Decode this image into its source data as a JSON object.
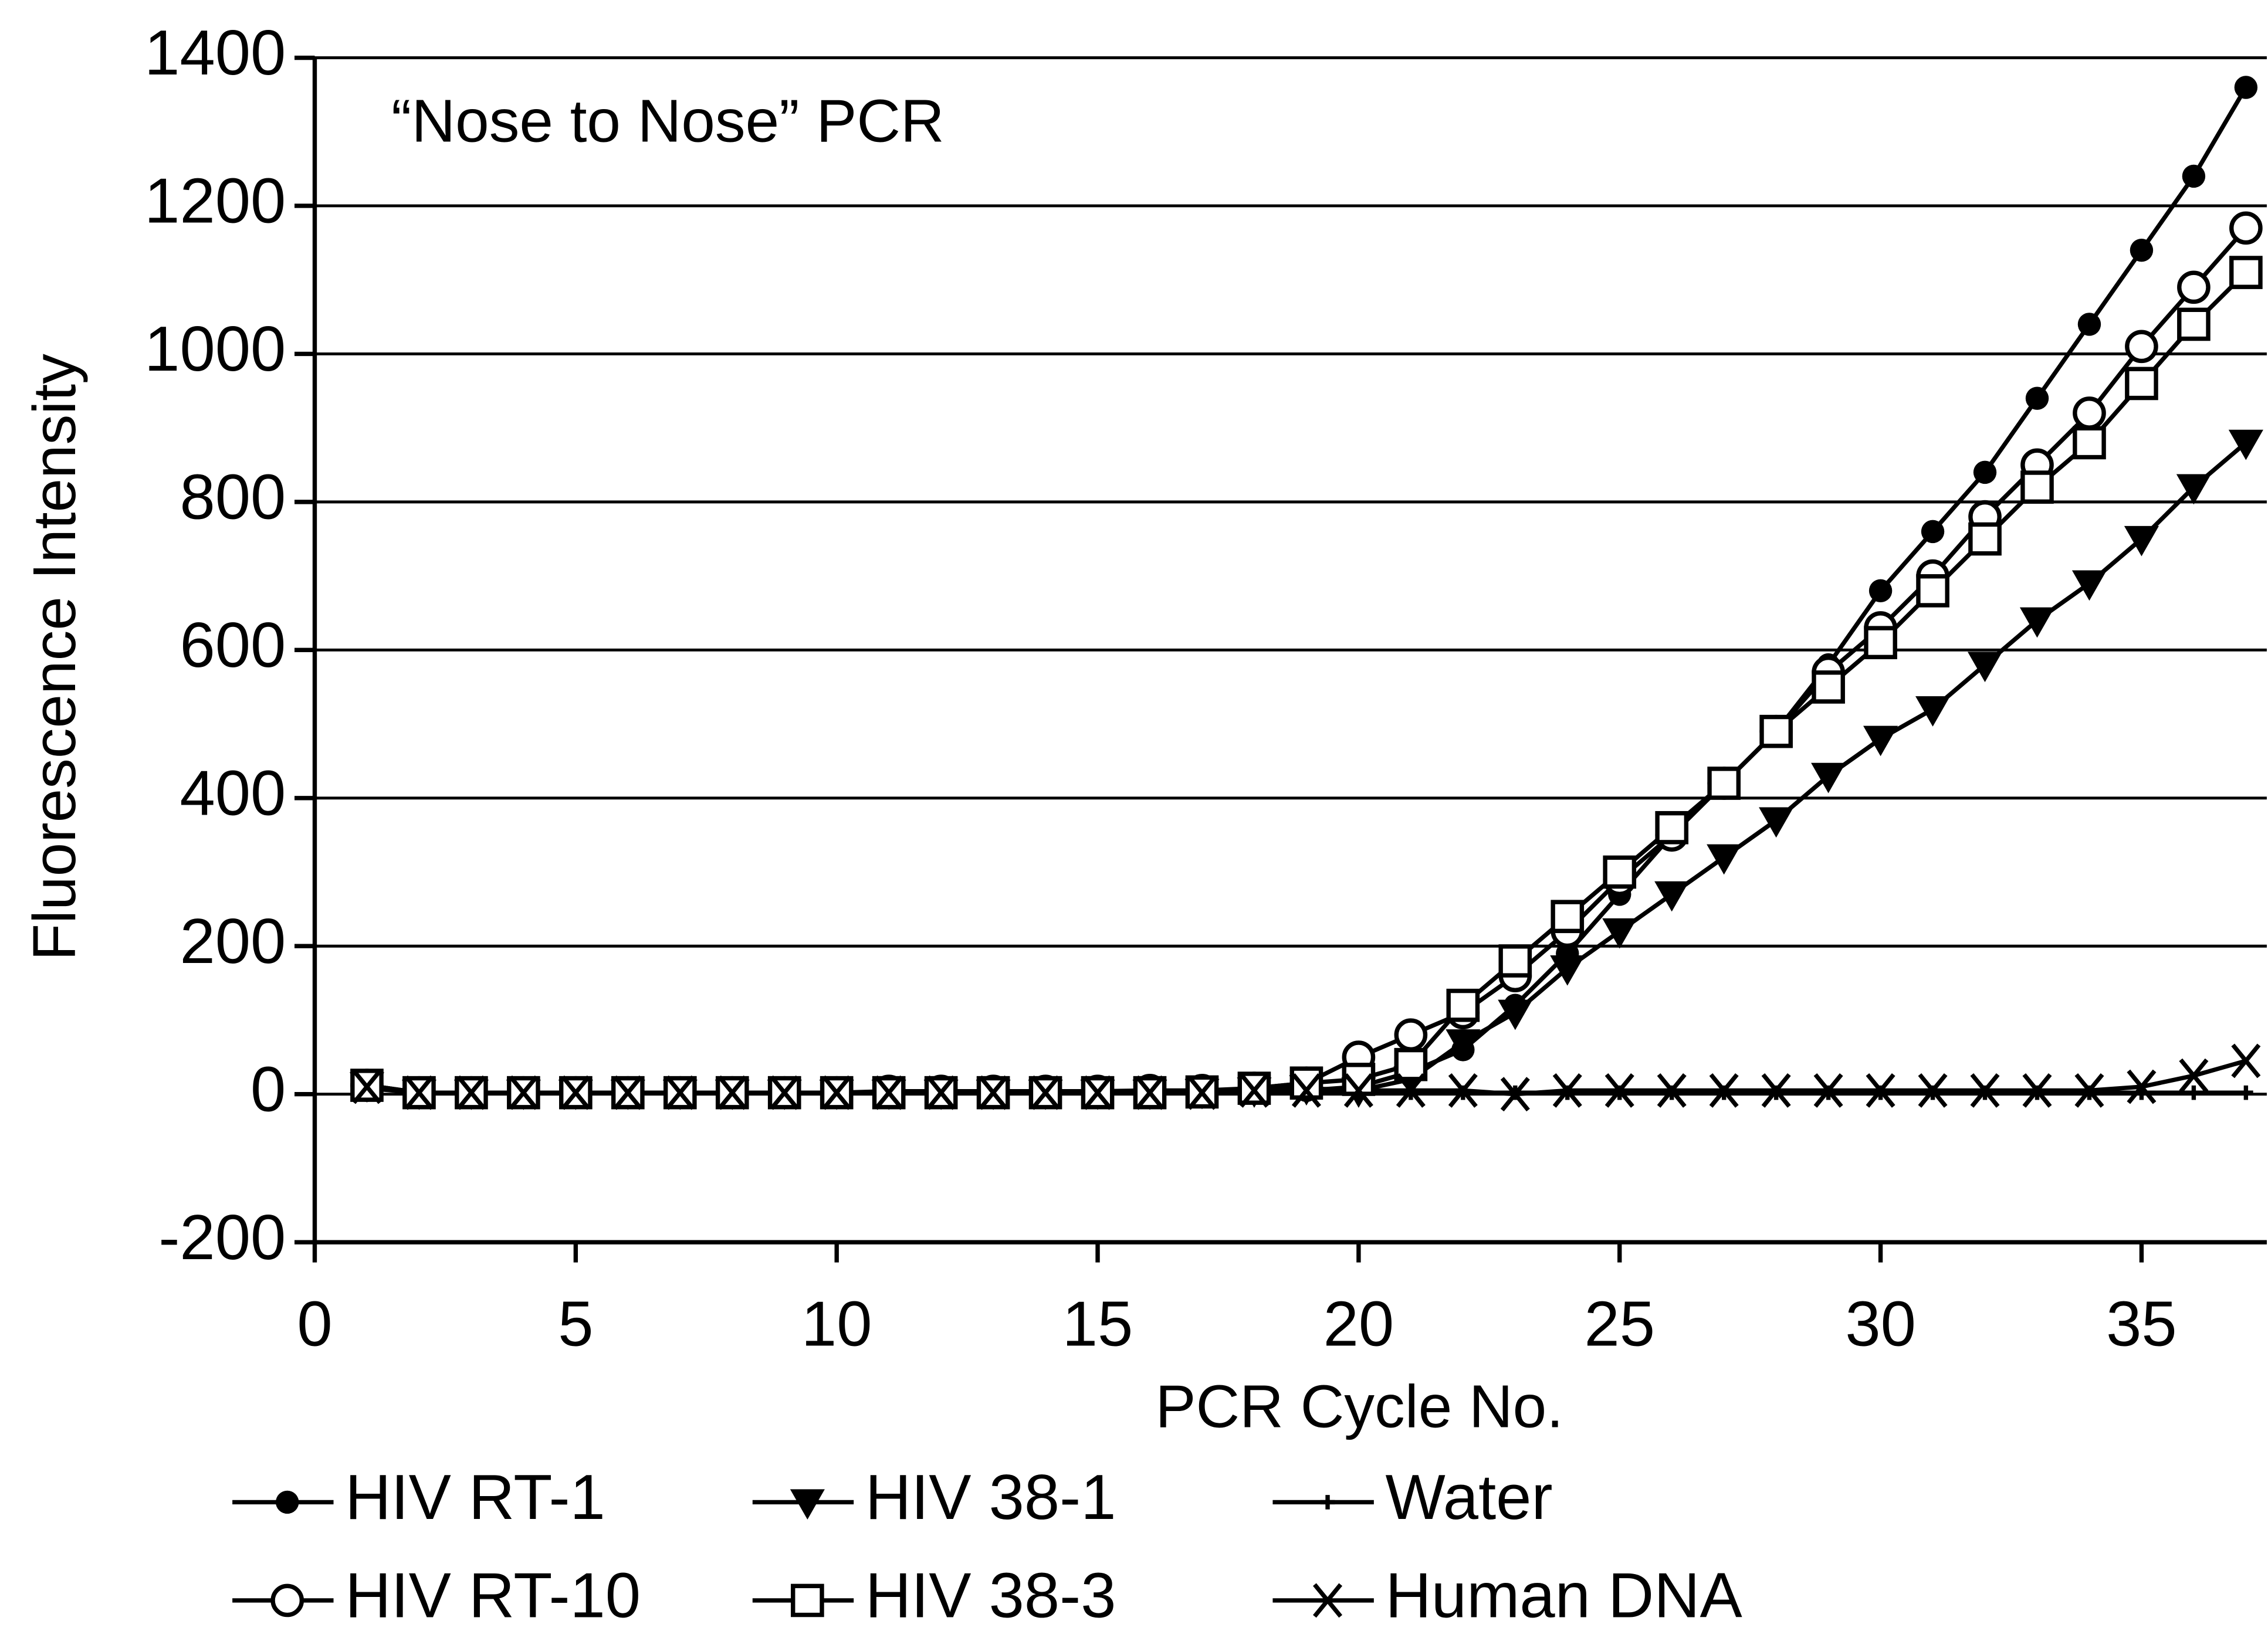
{
  "chart_data": {
    "type": "line",
    "title": "“Nose to Nose” PCR",
    "x_label": "PCR Cycle No.",
    "y_label": "Fluorescence Intensity",
    "x": [
      1,
      2,
      3,
      4,
      5,
      6,
      7,
      8,
      9,
      10,
      11,
      12,
      13,
      14,
      15,
      16,
      17,
      18,
      19,
      20,
      21,
      22,
      23,
      24,
      25,
      26,
      27,
      28,
      29,
      30,
      31,
      32,
      33,
      34,
      35,
      36,
      37
    ],
    "xlim": [
      0,
      37.4
    ],
    "xticks": [
      0,
      5,
      10,
      15,
      20,
      25,
      30,
      35
    ],
    "ylim": [
      -200,
      1400
    ],
    "yticks": [
      -200,
      0,
      200,
      400,
      600,
      800,
      1000,
      1200,
      1400
    ],
    "grid": true,
    "series": [
      {
        "name": "HIV RT-1",
        "color": "#000000",
        "marker": "filled-circle",
        "values": [
          12,
          2,
          2,
          2,
          2,
          2,
          2,
          2,
          2,
          2,
          2,
          2,
          2,
          2,
          2,
          2,
          3,
          5,
          5,
          10,
          30,
          60,
          120,
          190,
          270,
          350,
          420,
          490,
          580,
          680,
          760,
          840,
          940,
          1040,
          1140,
          1240,
          1360
        ]
      },
      {
        "name": "HIV 38-1",
        "color": "#000000",
        "marker": "filled-triangle-down",
        "values": [
          12,
          2,
          2,
          2,
          2,
          2,
          2,
          2,
          2,
          2,
          2,
          2,
          2,
          2,
          2,
          2,
          3,
          5,
          8,
          5,
          20,
          70,
          110,
          170,
          220,
          270,
          320,
          370,
          430,
          480,
          520,
          580,
          640,
          690,
          750,
          820,
          880
        ]
      },
      {
        "name": "Water",
        "color": "#000000",
        "marker": "plus",
        "values": [
          8,
          2,
          2,
          2,
          2,
          2,
          2,
          2,
          2,
          2,
          2,
          2,
          2,
          2,
          2,
          2,
          2,
          2,
          2,
          2,
          2,
          2,
          2,
          2,
          2,
          2,
          2,
          2,
          2,
          2,
          2,
          2,
          2,
          2,
          2,
          2,
          2
        ]
      },
      {
        "name": "HIV RT-10",
        "color": "#000000",
        "marker": "open-circle",
        "values": [
          12,
          2,
          2,
          2,
          2,
          2,
          2,
          2,
          2,
          2,
          4,
          4,
          4,
          4,
          4,
          5,
          5,
          8,
          15,
          50,
          80,
          110,
          160,
          220,
          290,
          350,
          420,
          490,
          570,
          630,
          700,
          780,
          850,
          920,
          1010,
          1090,
          1170
        ]
      },
      {
        "name": "HIV 38-3",
        "color": "#000000",
        "marker": "open-square",
        "values": [
          12,
          2,
          2,
          2,
          2,
          2,
          2,
          2,
          2,
          2,
          2,
          2,
          2,
          2,
          2,
          2,
          3,
          8,
          15,
          20,
          40,
          120,
          180,
          240,
          300,
          360,
          420,
          490,
          550,
          610,
          680,
          750,
          820,
          880,
          960,
          1040,
          1110
        ]
      },
      {
        "name": "Human DNA",
        "color": "#000000",
        "marker": "cross",
        "values": [
          10,
          2,
          2,
          2,
          2,
          2,
          2,
          2,
          2,
          2,
          2,
          2,
          2,
          2,
          2,
          2,
          2,
          5,
          5,
          5,
          5,
          5,
          0,
          5,
          5,
          5,
          5,
          5,
          5,
          5,
          5,
          5,
          5,
          5,
          10,
          25,
          45
        ]
      }
    ]
  }
}
